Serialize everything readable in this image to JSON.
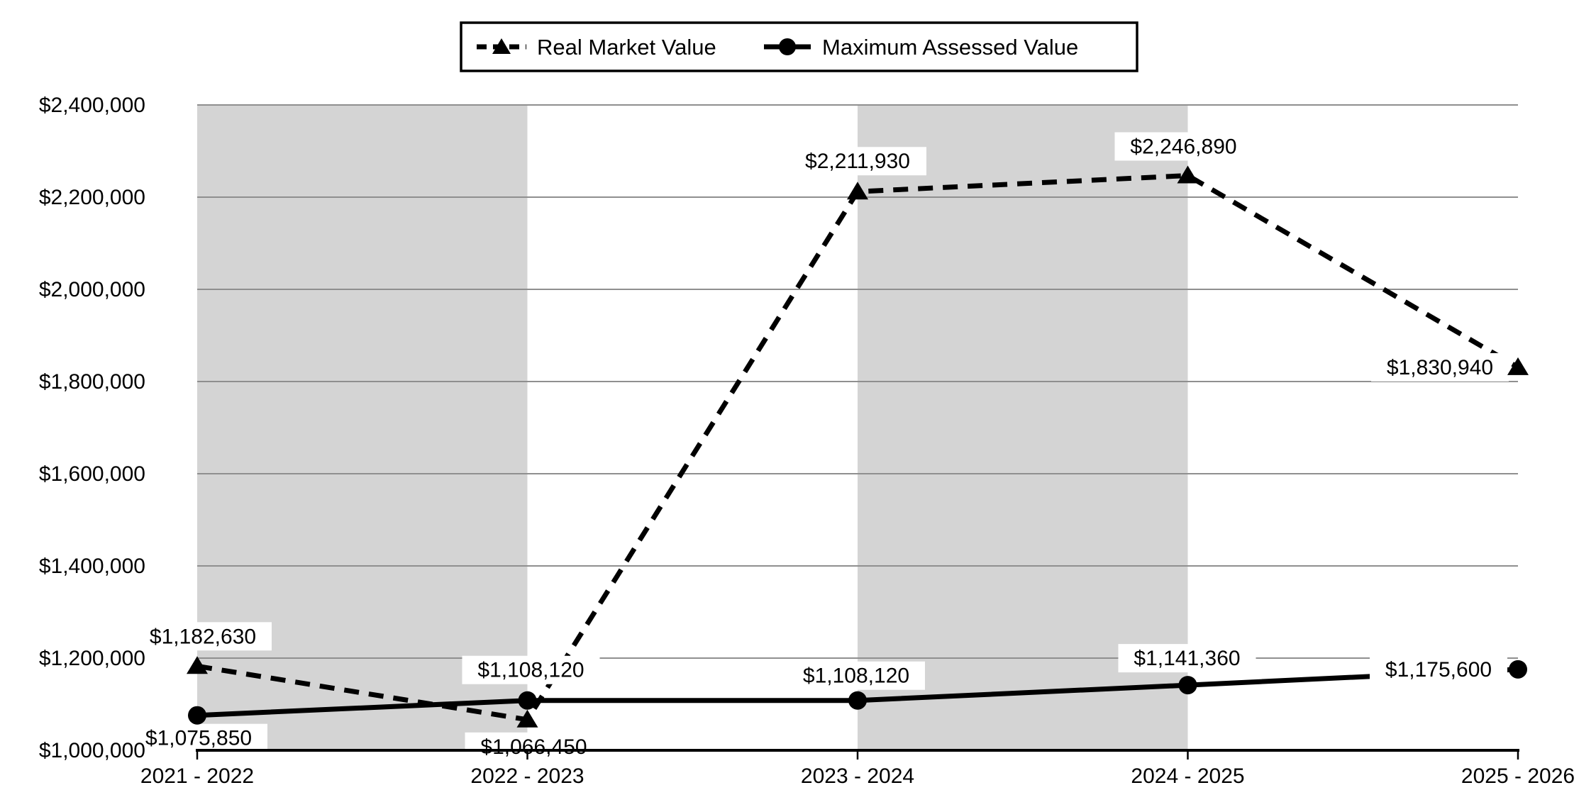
{
  "chart_data": {
    "type": "line",
    "title": "",
    "categories": [
      "2021 - 2022",
      "2022 - 2023",
      "2023 - 2024",
      "2024 - 2025",
      "2025 - 2026"
    ],
    "series": [
      {
        "name": "Real Market Value",
        "line_style": "dashed",
        "marker": "triangle",
        "color": "#000000",
        "values": [
          1182630,
          1066450,
          2211930,
          2246890,
          1830940
        ],
        "labels": [
          "$1,182,630",
          "$1,066,450",
          "$2,211,930",
          "$2,246,890",
          "$1,830,940"
        ],
        "label_offsets": [
          [
            8,
            -42
          ],
          [
            9,
            38
          ],
          [
            0,
            -43
          ],
          [
            -6,
            -41
          ],
          [
            -110,
            0
          ]
        ]
      },
      {
        "name": "Maximum Assessed Value",
        "line_style": "solid",
        "marker": "circle",
        "color": "#000000",
        "values": [
          1075850,
          1108120,
          1108120,
          1141360,
          1175600
        ],
        "labels": [
          "$1,075,850",
          "$1,108,120",
          "$1,108,120",
          "$1,141,360",
          "$1,175,600"
        ],
        "label_offsets": [
          [
            2,
            32
          ],
          [
            5,
            -43
          ],
          [
            -2,
            -35
          ],
          [
            -1,
            -38
          ],
          [
            -112,
            0
          ]
        ]
      }
    ],
    "y_axis": {
      "min": 1000000,
      "max": 2400000,
      "step": 200000,
      "tick_labels": [
        "$1,000,000",
        "$1,200,000",
        "$1,400,000",
        "$1,600,000",
        "$1,800,000",
        "$2,000,000",
        "$2,200,000",
        "$2,400,000"
      ]
    },
    "x_axis": {
      "tick_labels": [
        "2021 - 2022",
        "2022 - 2023",
        "2023 - 2024",
        "2024 - 2025",
        "2025 - 2026"
      ]
    },
    "shaded_bands": [
      [
        0,
        1
      ],
      [
        2,
        3
      ]
    ],
    "legend_position": "top",
    "grid": true,
    "colors": {
      "band": "#d4d4d4",
      "gridline": "#8f8f8f",
      "axis": "#000000",
      "series": "#000000",
      "label_bg": "#ffffff",
      "text": "#000000"
    }
  }
}
